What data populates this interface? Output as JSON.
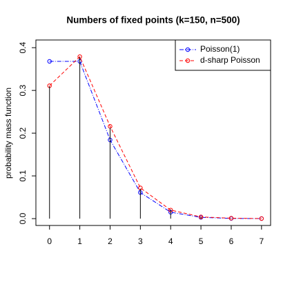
{
  "chart_data": {
    "type": "line",
    "title": "Numbers of fixed points (k=150, n=500)",
    "y_label": "probability mass function",
    "x": [
      0,
      1,
      2,
      3,
      4,
      5,
      6,
      7
    ],
    "series": [
      {
        "name": "Poisson(1)",
        "color": "#0000ff",
        "values": [
          0.368,
          0.368,
          0.184,
          0.061,
          0.015,
          0.003,
          0.0005,
          0.0001
        ]
      },
      {
        "name": "d-sharp Poisson",
        "color": "#ff0000",
        "values": [
          0.311,
          0.379,
          0.216,
          0.072,
          0.02,
          0.004,
          0.001,
          0.0002
        ]
      },
      {
        "type": "spike",
        "color": "#000000",
        "values": [
          0.31,
          0.378,
          0.212,
          0.07,
          0.021,
          0.004,
          0.001,
          0.0002
        ]
      }
    ],
    "xlim": [
      -0.45,
      7.3
    ],
    "ylim": [
      -0.016,
      0.418
    ],
    "xticks": [
      0,
      1,
      2,
      3,
      4,
      5,
      6,
      7
    ],
    "yticks": [
      {
        "value": 0,
        "label": "0.0"
      },
      0.1,
      0.2,
      0.3,
      0.4
    ],
    "legend": "top-right"
  }
}
